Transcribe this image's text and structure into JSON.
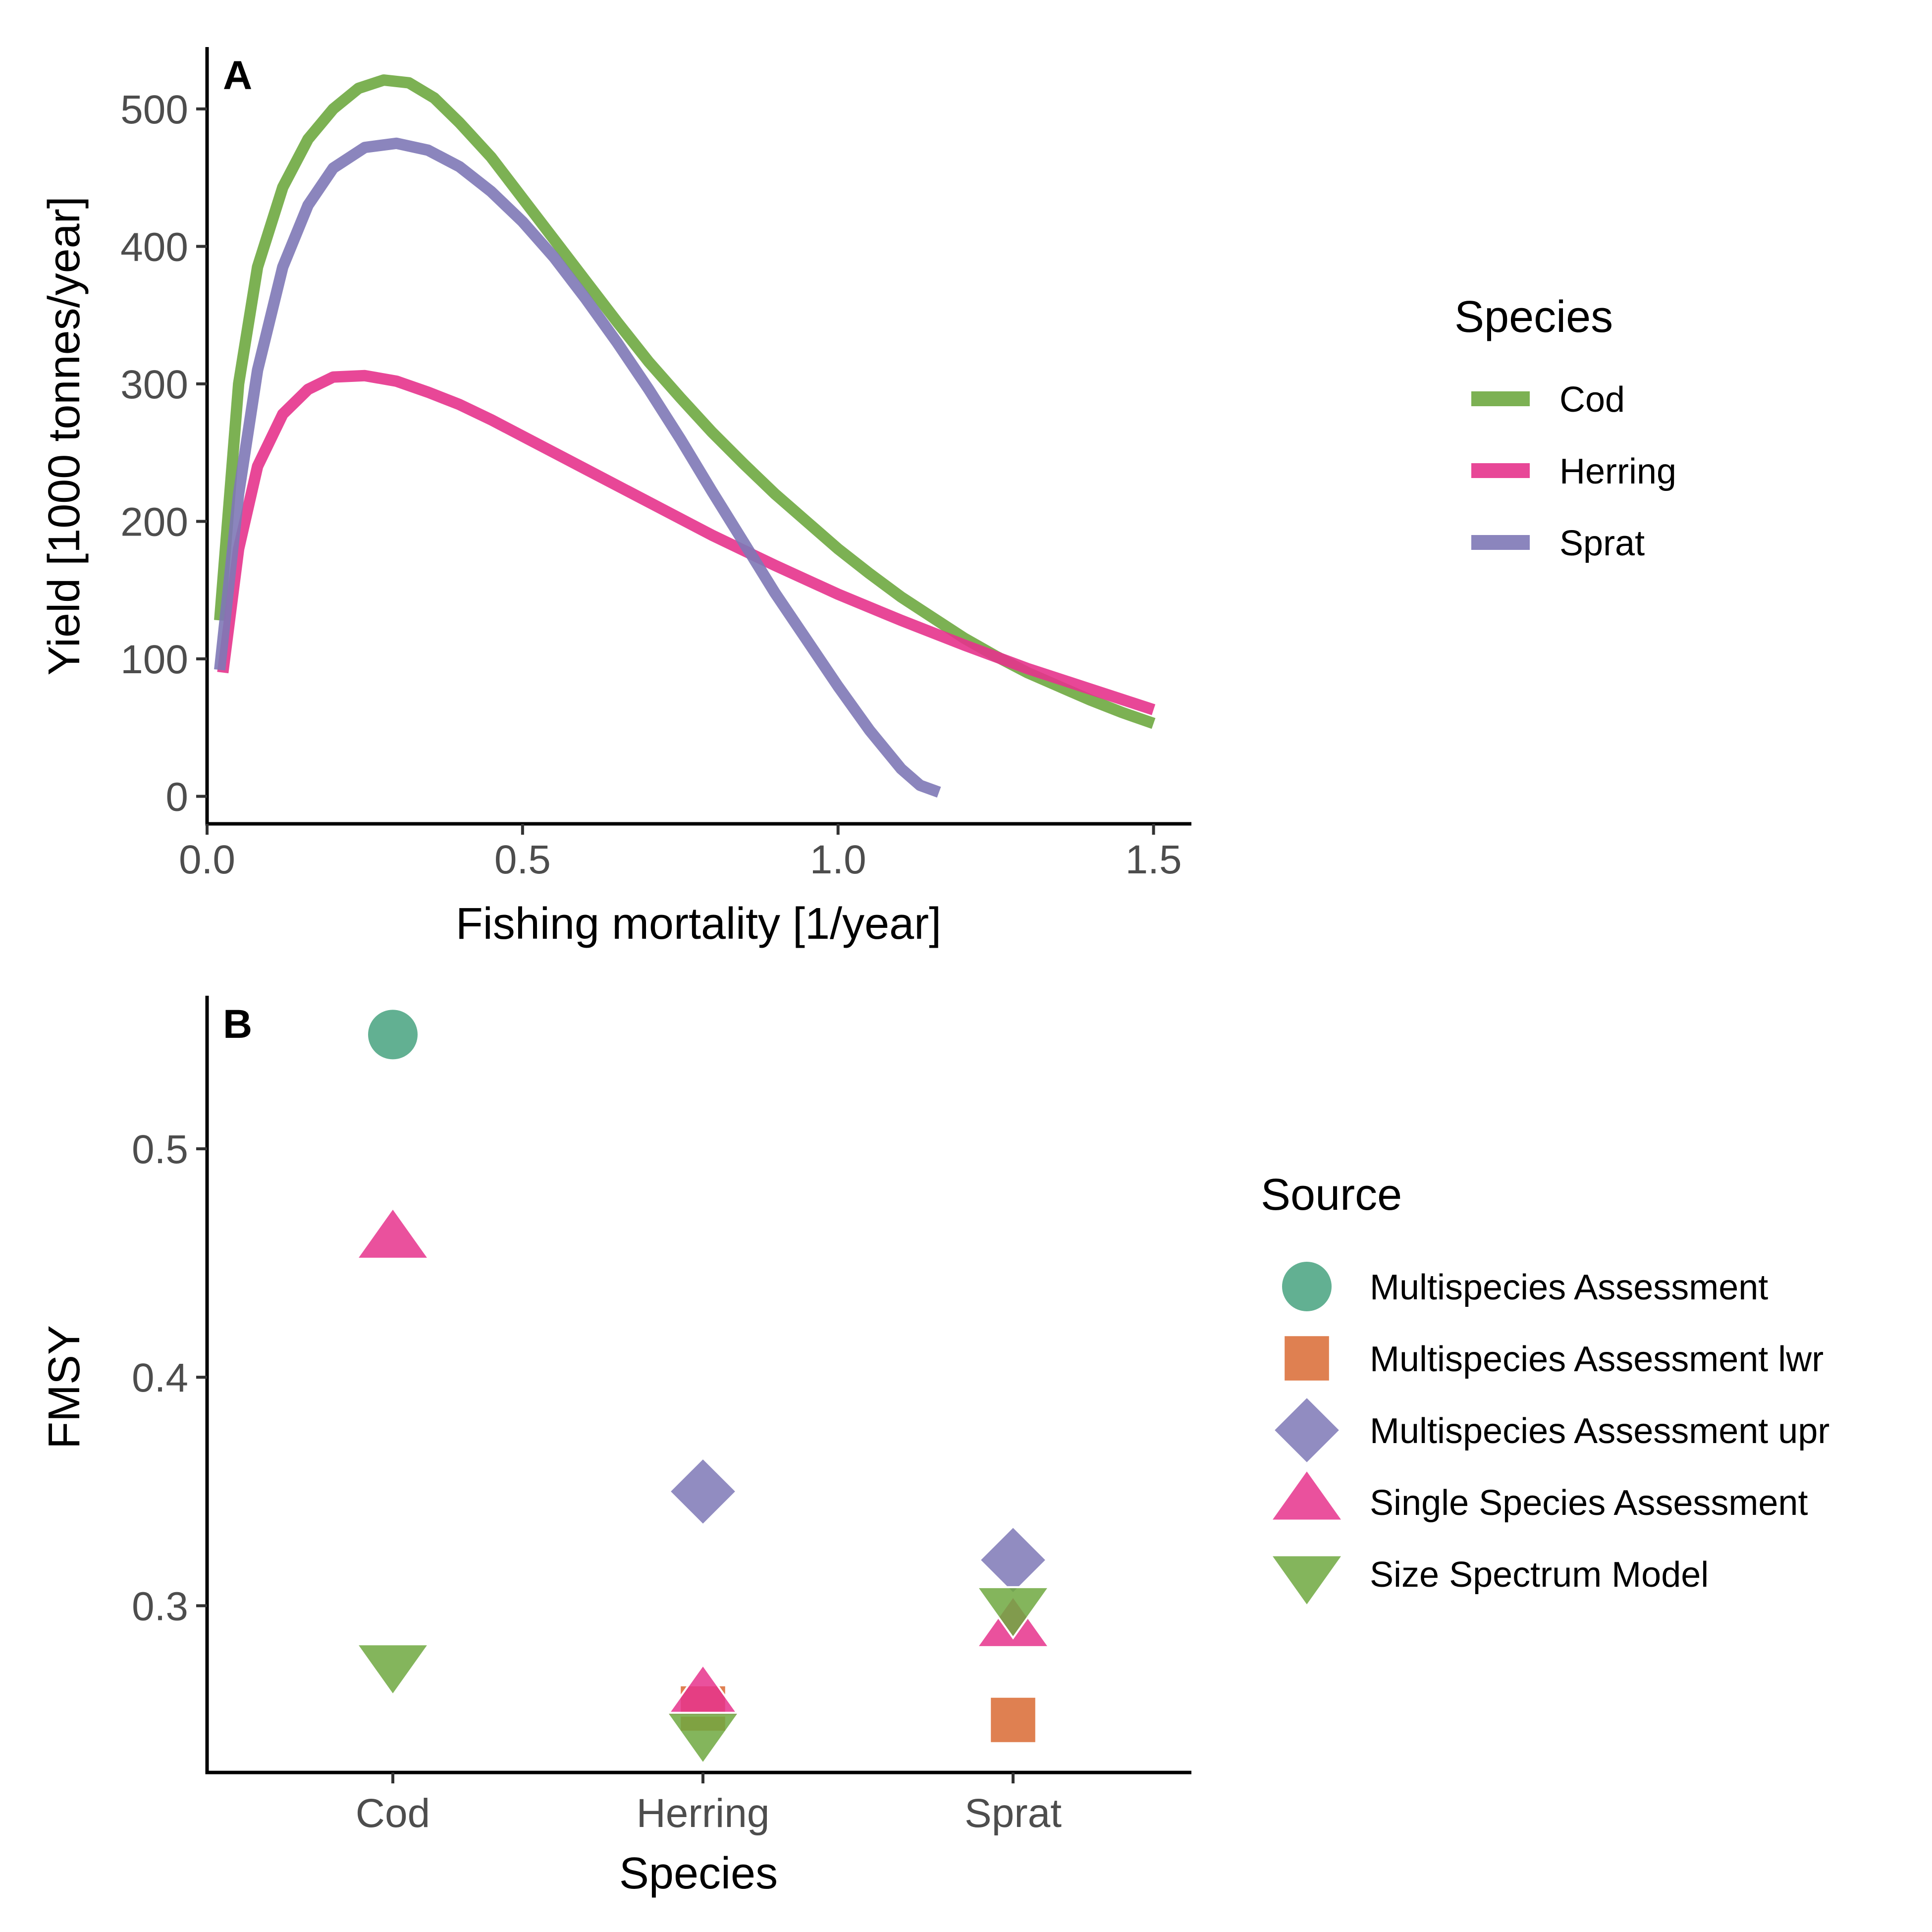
{
  "colors": {
    "Cod": "#6ea840",
    "Herring": "#e6338c",
    "Sprat": "#7e78b6",
    "Multispecies Assessment": "#47a27f",
    "Multispecies Assessment lwr": "#d96a33",
    "Multispecies Assessment upr": "#7e78b6",
    "Single Species Assessment": "#e6338c",
    "Size Spectrum Model": "#6ea840"
  },
  "chart_data": [
    {
      "panel": "A",
      "type": "line",
      "xlabel": "Fishing mortality [1/year]",
      "ylabel": "Yield [1000 tonnes/year]",
      "xlim": [
        0,
        1.56
      ],
      "ylim": [
        -20,
        545
      ],
      "xticks": [
        "0.0",
        "0.5",
        "1.0",
        "1.5"
      ],
      "xtick_values": [
        0,
        0.5,
        1.0,
        1.5
      ],
      "yticks": [
        "0",
        "100",
        "200",
        "300",
        "400",
        "500"
      ],
      "ytick_values": [
        0,
        100,
        200,
        300,
        400,
        500
      ],
      "grid": false,
      "legend_title": "Species",
      "legend_position": "right",
      "series": [
        {
          "name": "Cod",
          "x": [
            0.02,
            0.05,
            0.08,
            0.12,
            0.16,
            0.2,
            0.24,
            0.28,
            0.32,
            0.36,
            0.4,
            0.45,
            0.5,
            0.55,
            0.6,
            0.65,
            0.7,
            0.75,
            0.8,
            0.85,
            0.9,
            0.95,
            1.0,
            1.05,
            1.1,
            1.15,
            1.2,
            1.25,
            1.3,
            1.35,
            1.4,
            1.45,
            1.5
          ],
          "y": [
            128,
            300,
            385,
            443,
            478,
            500,
            515,
            521,
            519,
            508,
            490,
            465,
            435,
            405,
            375,
            345,
            316,
            290,
            265,
            242,
            220,
            200,
            180,
            162,
            145,
            130,
            115,
            102,
            90,
            80,
            70,
            61,
            53
          ]
        },
        {
          "name": "Herring",
          "x": [
            0.025,
            0.05,
            0.08,
            0.12,
            0.16,
            0.2,
            0.25,
            0.3,
            0.35,
            0.4,
            0.45,
            0.5,
            0.55,
            0.6,
            0.7,
            0.8,
            0.9,
            1.0,
            1.1,
            1.2,
            1.3,
            1.4,
            1.5
          ],
          "y": [
            90,
            180,
            240,
            278,
            296,
            305,
            306,
            302,
            294,
            285,
            274,
            262,
            250,
            238,
            214,
            190,
            168,
            147,
            128,
            110,
            93,
            78,
            63
          ]
        },
        {
          "name": "Sprat",
          "x": [
            0.02,
            0.05,
            0.08,
            0.12,
            0.16,
            0.2,
            0.25,
            0.3,
            0.35,
            0.4,
            0.45,
            0.5,
            0.55,
            0.6,
            0.65,
            0.7,
            0.75,
            0.8,
            0.85,
            0.9,
            0.95,
            1.0,
            1.05,
            1.1,
            1.13,
            1.16
          ],
          "y": [
            92,
            220,
            310,
            385,
            430,
            457,
            472,
            475,
            470,
            458,
            440,
            418,
            392,
            362,
            330,
            296,
            260,
            222,
            185,
            148,
            114,
            80,
            48,
            20,
            8,
            3
          ]
        }
      ]
    },
    {
      "panel": "B",
      "type": "scatter",
      "xlabel": "Species",
      "ylabel": "FMSY",
      "categories": [
        "Cod",
        "Herring",
        "Sprat"
      ],
      "ylim": [
        0.227,
        0.567
      ],
      "yticks": [
        "0.3",
        "0.4",
        "0.5"
      ],
      "ytick_values": [
        0.3,
        0.4,
        0.5
      ],
      "grid": false,
      "legend_title": "Source",
      "legend_position": "right",
      "series": [
        {
          "name": "Multispecies Assessment",
          "shape": "circle",
          "points": [
            {
              "category": "Cod",
              "value": 0.55
            }
          ]
        },
        {
          "name": "Multispecies Assessment lwr",
          "shape": "square",
          "points": [
            {
              "category": "Herring",
              "value": 0.255
            },
            {
              "category": "Sprat",
              "value": 0.25
            }
          ]
        },
        {
          "name": "Multispecies Assessment upr",
          "shape": "diamond",
          "points": [
            {
              "category": "Herring",
              "value": 0.35
            },
            {
              "category": "Sprat",
              "value": 0.32
            }
          ]
        },
        {
          "name": "Single Species Assessment",
          "shape": "triangle-up",
          "points": [
            {
              "category": "Cod",
              "value": 0.46
            },
            {
              "category": "Herring",
              "value": 0.26
            },
            {
              "category": "Sprat",
              "value": 0.29
            }
          ]
        },
        {
          "name": "Size Spectrum Model",
          "shape": "triangle-down",
          "points": [
            {
              "category": "Cod",
              "value": 0.275
            },
            {
              "category": "Herring",
              "value": 0.245
            },
            {
              "category": "Sprat",
              "value": 0.3
            }
          ]
        }
      ]
    }
  ]
}
